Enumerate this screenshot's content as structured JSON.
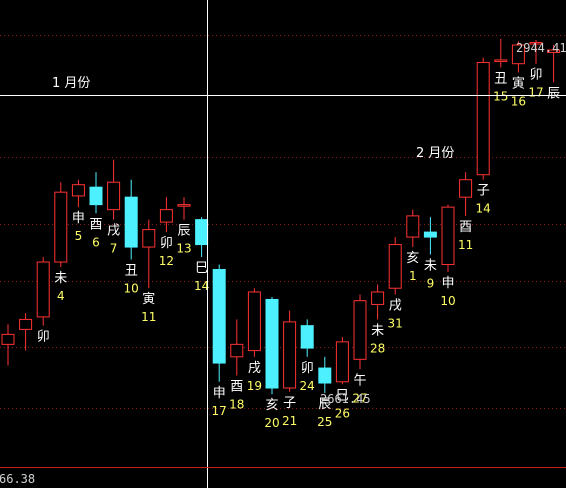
{
  "chart_data": {
    "type": "candlestick",
    "colors": {
      "up": "#ff3333",
      "down": "#4cf0ff",
      "grid": "#8b1a1a",
      "crosshair": "#ffffff"
    },
    "annotations": {
      "month_jan": "1 月份",
      "month_feb": "2 月份",
      "high_value": "2944.41",
      "low_value": "2661.45",
      "axis_value": "66.38"
    },
    "candles": [
      {
        "d": "",
        "b": "",
        "o": 2700,
        "h": 2716,
        "l": 2683,
        "c": 2708
      },
      {
        "d": "",
        "b": "",
        "o": 2712,
        "h": 2725,
        "l": 2695,
        "c": 2720
      },
      {
        "d": "",
        "b": "卯",
        "o": 2722,
        "h": 2770,
        "l": 2715,
        "c": 2766
      },
      {
        "d": "4",
        "b": "未",
        "o": 2766,
        "h": 2830,
        "l": 2762,
        "c": 2822
      },
      {
        "d": "5",
        "b": "申",
        "o": 2819,
        "h": 2832,
        "l": 2810,
        "c": 2828
      },
      {
        "d": "6",
        "b": "酉",
        "o": 2826,
        "h": 2838,
        "l": 2805,
        "c": 2812
      },
      {
        "d": "7",
        "b": "戌",
        "o": 2808,
        "h": 2848,
        "l": 2800,
        "c": 2830
      },
      {
        "d": "10",
        "b": "丑",
        "o": 2818,
        "h": 2832,
        "l": 2768,
        "c": 2778
      },
      {
        "d": "11",
        "b": "寅",
        "o": 2778,
        "h": 2800,
        "l": 2745,
        "c": 2792
      },
      {
        "d": "12",
        "b": "卯",
        "o": 2798,
        "h": 2818,
        "l": 2790,
        "c": 2808
      },
      {
        "d": "13",
        "b": "辰",
        "o": 2812,
        "h": 2818,
        "l": 2800,
        "c": 2812
      },
      {
        "d": "14",
        "b": "巳",
        "o": 2800,
        "h": 2802,
        "l": 2770,
        "c": 2780
      },
      {
        "d": "17",
        "b": "申",
        "o": 2760,
        "h": 2764,
        "l": 2670,
        "c": 2685
      },
      {
        "d": "18",
        "b": "酉",
        "o": 2690,
        "h": 2720,
        "l": 2675,
        "c": 2700
      },
      {
        "d": "19",
        "b": "戌",
        "o": 2695,
        "h": 2745,
        "l": 2690,
        "c": 2742
      },
      {
        "d": "20",
        "b": "亥",
        "o": 2736,
        "h": 2738,
        "l": 2660,
        "c": 2665
      },
      {
        "d": "21",
        "b": "子",
        "o": 2665,
        "h": 2727,
        "l": 2662,
        "c": 2718
      },
      {
        "d": "24",
        "b": "卯",
        "o": 2715,
        "h": 2720,
        "l": 2690,
        "c": 2697
      },
      {
        "d": "25",
        "b": "辰",
        "o": 2681,
        "h": 2690,
        "l": 2661,
        "c": 2669
      },
      {
        "d": "26",
        "b": "巳",
        "o": 2670,
        "h": 2706,
        "l": 2668,
        "c": 2702
      },
      {
        "d": "27",
        "b": "午",
        "o": 2688,
        "h": 2740,
        "l": 2680,
        "c": 2735
      },
      {
        "d": "28",
        "b": "未",
        "o": 2732,
        "h": 2748,
        "l": 2720,
        "c": 2742
      },
      {
        "d": "31",
        "b": "戌",
        "o": 2745,
        "h": 2786,
        "l": 2740,
        "c": 2780
      },
      {
        "d": "1",
        "b": "亥",
        "o": 2786,
        "h": 2808,
        "l": 2778,
        "c": 2803
      },
      {
        "d": "9",
        "b": "未",
        "o": 2790,
        "h": 2802,
        "l": 2772,
        "c": 2786
      },
      {
        "d": "10",
        "b": "申",
        "o": 2764,
        "h": 2812,
        "l": 2758,
        "c": 2810
      },
      {
        "d": "11",
        "b": "酉",
        "o": 2818,
        "h": 2838,
        "l": 2803,
        "c": 2832
      },
      {
        "d": "14",
        "b": "子",
        "o": 2836,
        "h": 2930,
        "l": 2832,
        "c": 2926
      },
      {
        "d": "15",
        "b": "丑",
        "o": 2928,
        "h": 2945,
        "l": 2922,
        "c": 2928
      },
      {
        "d": "16",
        "b": "寅",
        "o": 2925,
        "h": 2943,
        "l": 2918,
        "c": 2940
      },
      {
        "d": "17",
        "b": "卯",
        "o": 2941,
        "h": 2944,
        "l": 2925,
        "c": 2942
      },
      {
        "d": "",
        "b": "辰",
        "o": 2934,
        "h": 2940,
        "l": 2910,
        "c": 2936
      }
    ]
  }
}
